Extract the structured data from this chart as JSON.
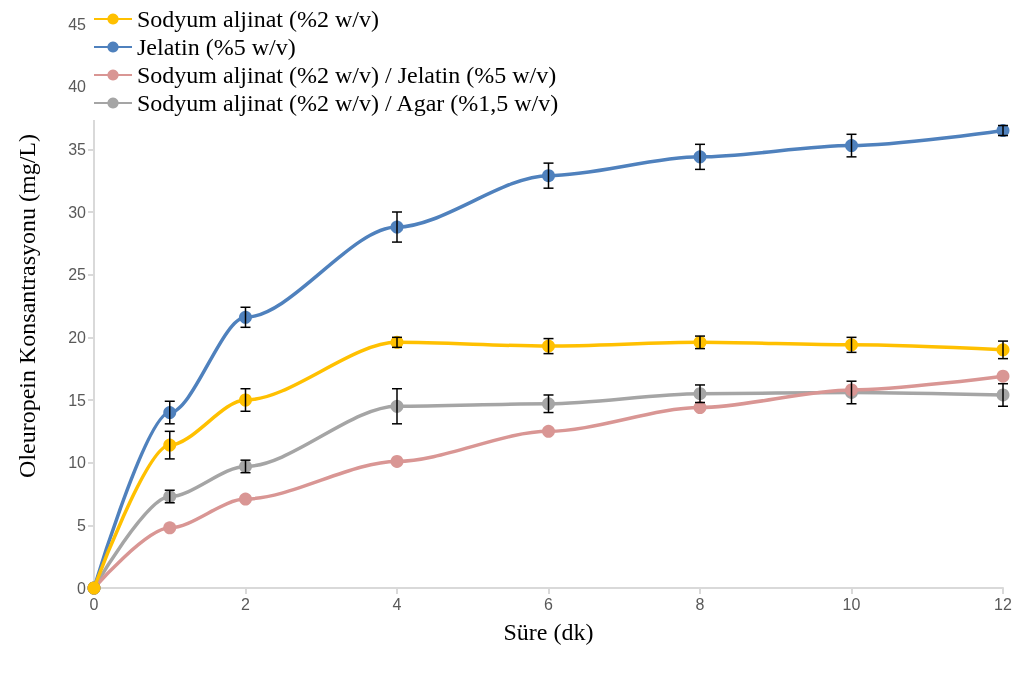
{
  "chart_data": {
    "type": "line",
    "xlabel": "Süre (dk)",
    "ylabel": "Oleuropein Konsantrasyonu (mg/L)",
    "x": [
      0,
      1,
      2,
      4,
      6,
      8,
      10,
      12
    ],
    "series": [
      {
        "name": "Sodyum aljinat (%2 w/v)",
        "color": "#ffc000",
        "values": [
          0,
          11.4,
          15.0,
          19.6,
          19.3,
          19.6,
          19.4,
          19.0
        ],
        "errors": [
          null,
          1.1,
          0.9,
          0.4,
          0.6,
          0.5,
          0.6,
          0.7
        ]
      },
      {
        "name": "Jelatin (%5 w/v)",
        "color": "#4f81bd",
        "values": [
          0,
          14.0,
          21.6,
          28.8,
          32.9,
          34.4,
          35.3,
          36.5
        ],
        "errors": [
          null,
          0.9,
          0.8,
          1.2,
          1.0,
          1.0,
          0.9,
          0.4
        ]
      },
      {
        "name": "Sodyum aljinat (%2 w/v) / Jelatin (%5 w/v)",
        "color": "#d99694",
        "values": [
          0,
          4.8,
          7.1,
          10.1,
          12.5,
          14.4,
          15.8,
          16.9
        ]
      },
      {
        "name": "Sodyum aljinat (%2 w/v) / Agar (%1,5 w/v)",
        "color": "#a5a5a5",
        "values": [
          0,
          7.3,
          9.7,
          14.5,
          14.7,
          15.5,
          15.6,
          15.4
        ],
        "errors": [
          null,
          0.5,
          0.5,
          1.4,
          0.7,
          0.7,
          0.9,
          0.9
        ]
      }
    ],
    "xlim": [
      0,
      12
    ],
    "xticks": [
      0,
      2,
      4,
      6,
      8,
      10,
      12
    ],
    "ylim": [
      0,
      45
    ],
    "yticks": [
      0,
      5,
      10,
      15,
      20,
      25,
      30,
      35,
      40,
      45
    ],
    "grid": false,
    "legend": "top left",
    "marker": "circle",
    "line_style": "solid"
  }
}
